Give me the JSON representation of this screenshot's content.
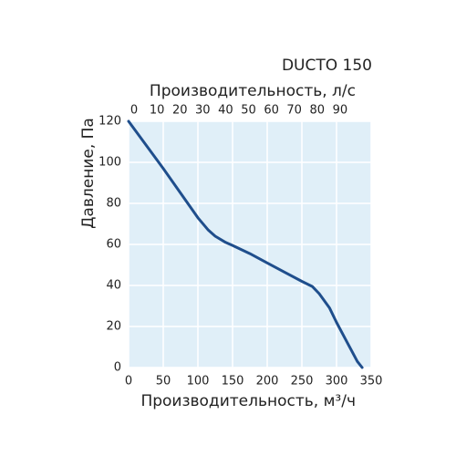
{
  "chart_data": {
    "type": "line",
    "title": "DUCTO 150",
    "xlabel": "Производительность, м³/ч",
    "ylabel": "Давление, Па",
    "x2label": "Производительность, л/с",
    "x": [
      0,
      25,
      50,
      75,
      100,
      115,
      125,
      140,
      150,
      175,
      200,
      225,
      250,
      265,
      275,
      290,
      300,
      315,
      330,
      337
    ],
    "values": [
      120,
      108.5,
      97,
      85,
      73,
      67,
      64,
      61,
      59.5,
      55.5,
      51,
      46.5,
      42,
      39.5,
      36,
      29,
      22,
      12.5,
      3,
      0
    ],
    "color": "#1f4e8c",
    "xlim": [
      0,
      350
    ],
    "xticks": [
      0,
      50,
      100,
      150,
      200,
      250,
      300,
      350
    ],
    "ylim": [
      0,
      120
    ],
    "yticks": [
      0,
      20,
      40,
      60,
      80,
      100,
      120
    ],
    "x2lim": [
      -2.4,
      103.6
    ],
    "x2ticks": [
      0,
      10,
      20,
      30,
      40,
      50,
      60,
      70,
      80,
      90
    ],
    "grid": true
  }
}
